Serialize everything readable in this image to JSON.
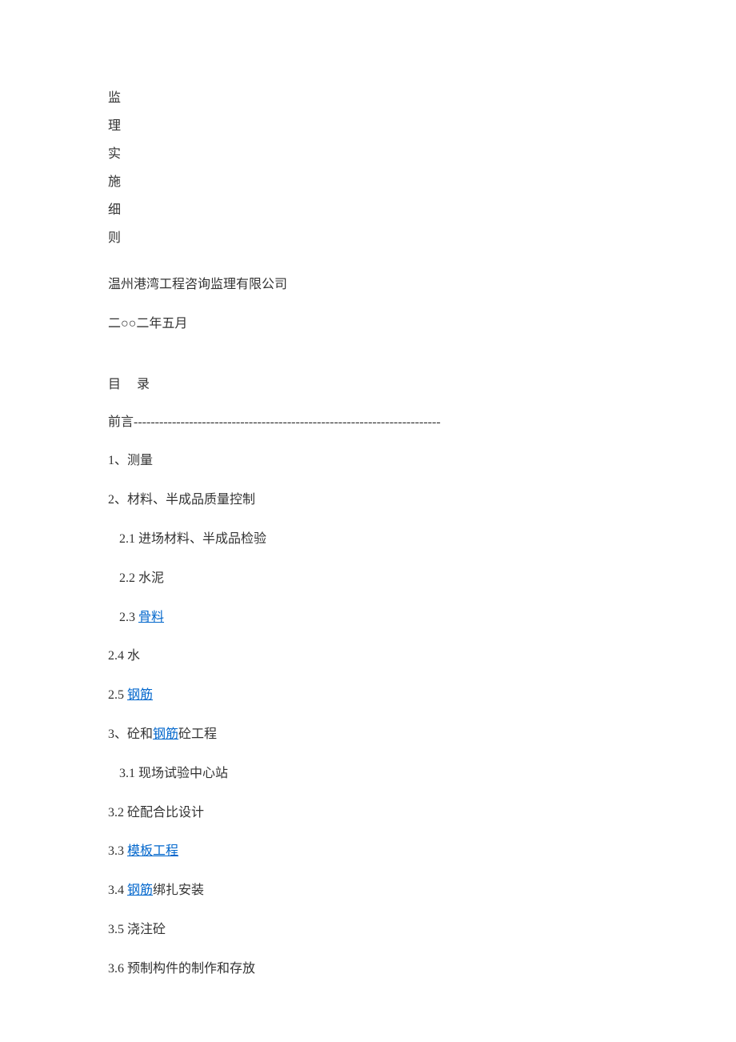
{
  "title": {
    "chars": [
      "监",
      "理",
      "实",
      "施",
      "细",
      "则"
    ]
  },
  "company": "温州港湾工程咨询监理有限公司",
  "date": "二○○二年五月",
  "toc_header": "目　录",
  "toc": {
    "preface_label": "前言",
    "preface_dashes": "------------------------------------------------------------------------",
    "items": [
      {
        "indent": 0,
        "prefix": "1、",
        "text": "测量",
        "link": null
      },
      {
        "indent": 0,
        "prefix": "2、",
        "text": "材料、半成品质量控制",
        "link": null
      },
      {
        "indent": 1,
        "prefix": "2.1 ",
        "text": "进场材料、半成品检验",
        "link": null
      },
      {
        "indent": 1,
        "prefix": "2.2 ",
        "text": "水泥",
        "link": null
      },
      {
        "indent": 1,
        "prefix": "2.3 ",
        "text": "",
        "link": "骨料"
      },
      {
        "indent": 0,
        "prefix": "2.4 ",
        "text": "水",
        "link": null
      },
      {
        "indent": 0,
        "prefix": "2.5 ",
        "text": "",
        "link": "钢筋"
      },
      {
        "indent": 0,
        "prefix": "3、",
        "text_before": "砼和",
        "link": "钢筋",
        "text_after": "砼工程"
      },
      {
        "indent": 1,
        "prefix": "3.1 ",
        "text": "现场试验中心站",
        "link": null
      },
      {
        "indent": 0,
        "prefix": "3.2 ",
        "text": "砼配合比设计",
        "link": null
      },
      {
        "indent": 0,
        "prefix": "3.3 ",
        "text": "",
        "link": "模板工程"
      },
      {
        "indent": 0,
        "prefix": "3.4 ",
        "text_after": "绑扎安装",
        "link": "钢筋"
      },
      {
        "indent": 0,
        "prefix": "3.5 ",
        "text": "浇注砼",
        "link": null
      },
      {
        "indent": 0,
        "prefix": "3.6 ",
        "text": "预制构件的制作和存放",
        "link": null
      }
    ]
  },
  "colors": {
    "text": "#333333",
    "link": "#0066cc",
    "background": "#ffffff"
  }
}
